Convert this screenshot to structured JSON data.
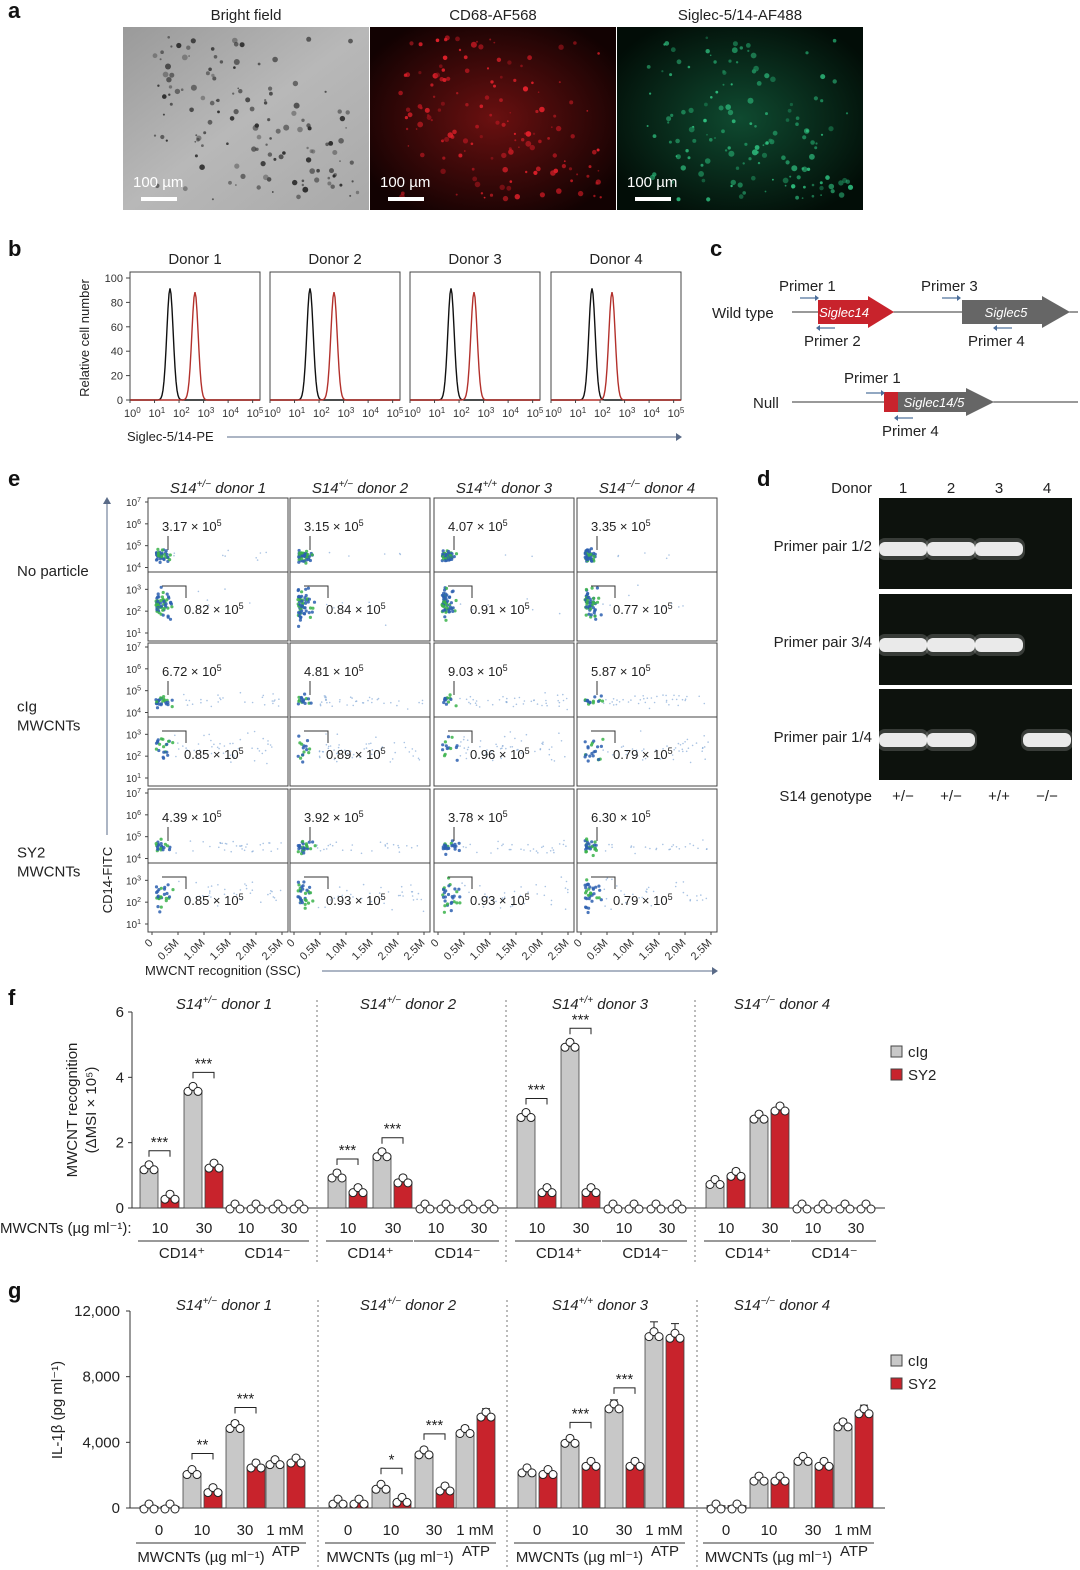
{
  "panel_letters": [
    "a",
    "b",
    "c",
    "d",
    "e",
    "f",
    "g"
  ],
  "panel_a": {
    "images": [
      {
        "title": "Bright field",
        "scale": "100 µm"
      },
      {
        "title": "CD68-AF568",
        "scale": "100 µm"
      },
      {
        "title": "Siglec-5/14-AF488",
        "scale": "100 µm"
      }
    ]
  },
  "panel_b": {
    "donors": [
      "Donor 1",
      "Donor 2",
      "Donor 3",
      "Donor 4"
    ],
    "ylabel": "Relative cell number",
    "xlabel": "Siglec-5/14-PE",
    "yticks": [
      "0",
      "20",
      "40",
      "60",
      "80",
      "100"
    ],
    "xticks_base": "10",
    "xticks_exp": [
      "0",
      "1",
      "2",
      "3",
      "4",
      "5"
    ]
  },
  "panel_c": {
    "wild_type": "Wild type",
    "null": "Null",
    "primers_wt": [
      "Primer 1",
      "Primer 2",
      "Primer 3",
      "Primer 4"
    ],
    "primers_null": [
      "Primer 1",
      "Primer 4"
    ],
    "genes": {
      "s14": "Siglec14",
      "s5": "Siglec5",
      "fused": "Siglec14/5"
    }
  },
  "panel_d": {
    "donor_label": "Donor",
    "lanes": [
      "1",
      "2",
      "3",
      "4"
    ],
    "pairs": [
      "Primer pair 1/2",
      "Primer pair 3/4",
      "Primer pair 1/4"
    ],
    "genotype_label": "S14 genotype",
    "genotypes": [
      "+/−",
      "+/−",
      "+/+",
      "−/−"
    ],
    "bands": [
      [
        1,
        1,
        1,
        0
      ],
      [
        1,
        1,
        1,
        0
      ],
      [
        1,
        1,
        0,
        1
      ]
    ]
  },
  "panel_e": {
    "columns": [
      {
        "g": "S14",
        "sup": "+/−",
        "d": " donor 1"
      },
      {
        "g": "S14",
        "sup": "+/−",
        "d": " donor 2"
      },
      {
        "g": "S14",
        "sup": "+/+",
        "d": " donor 3"
      },
      {
        "g": "S14",
        "sup": "−/−",
        "d": " donor 4"
      }
    ],
    "rows": [
      [
        "No particle"
      ],
      [
        "cIg",
        "MWCNTs"
      ],
      [
        "SY2",
        "MWCNTs"
      ]
    ],
    "upper": [
      [
        "3.17",
        "3.15",
        "4.07",
        "3.35"
      ],
      [
        "6.72",
        "4.81",
        "9.03",
        "5.87"
      ],
      [
        "4.39",
        "3.92",
        "3.78",
        "6.30"
      ]
    ],
    "lower": [
      [
        "0.82",
        "0.84",
        "0.91",
        "0.77"
      ],
      [
        "0.85",
        "0.89",
        "0.96",
        "0.79"
      ],
      [
        "0.85",
        "0.93",
        "0.93",
        "0.79"
      ]
    ],
    "mult": "× 10",
    "exp": "5",
    "ylabel": "CD14-FITC",
    "xlabel": "MWCNT recognition (SSC)",
    "xticks": [
      "0",
      "0.5M",
      "1.0M",
      "1.5M",
      "2.0M",
      "2.5M"
    ],
    "yticks_exp": [
      "1",
      "2",
      "3",
      "4",
      "5",
      "6",
      "7"
    ]
  },
  "panel_f": {
    "titles": [
      {
        "g": "S14",
        "sup": "+/−",
        "d": " donor 1"
      },
      {
        "g": "S14",
        "sup": "+/−",
        "d": " donor 2"
      },
      {
        "g": "S14",
        "sup": "+/+",
        "d": " donor 3"
      },
      {
        "g": "S14",
        "sup": "−/−",
        "d": " donor 4"
      }
    ],
    "ylabel1": "MWCNT recognition",
    "ylabel2": "(ΔMSI × 10⁵)",
    "xprefix": "MWCNTs (µg ml⁻¹):",
    "dose_labels": [
      "10",
      "30",
      "10",
      "30"
    ],
    "groups": [
      "CD14⁺",
      "CD14⁻"
    ],
    "legend": [
      {
        "name": "cIg",
        "color": "#c8c8c8"
      },
      {
        "name": "SY2",
        "color": "#c8232c"
      }
    ],
    "chart_data": {
      "type": "bar",
      "ylim": [
        0,
        6
      ],
      "yticks": [
        "0",
        "2",
        "4",
        "6"
      ],
      "series": [
        {
          "name": "cIg",
          "values": [
            [
              1.2,
              3.6,
              0.0,
              0.0
            ],
            [
              0.95,
              1.6,
              0.0,
              0.0
            ],
            [
              2.8,
              4.95,
              0.0,
              0.0
            ],
            [
              0.75,
              2.75,
              0.0,
              0.0
            ]
          ]
        },
        {
          "name": "SY2",
          "values": [
            [
              0.3,
              1.25,
              0.0,
              0.0
            ],
            [
              0.5,
              0.8,
              0.0,
              0.0
            ],
            [
              0.5,
              0.5,
              0.0,
              0.0
            ],
            [
              1.0,
              3.0,
              0.0,
              0.0
            ]
          ]
        }
      ],
      "significance": [
        [
          "***",
          "***"
        ],
        [
          "***",
          "***"
        ],
        [
          "***",
          "***"
        ],
        [
          "",
          ""
        ]
      ]
    }
  },
  "panel_g": {
    "titles": [
      {
        "g": "S14",
        "sup": "+/−",
        "d": " donor 1"
      },
      {
        "g": "S14",
        "sup": "+/−",
        "d": " donor 2"
      },
      {
        "g": "S14",
        "sup": "+/+",
        "d": " donor 3"
      },
      {
        "g": "S14",
        "sup": "−/−",
        "d": " donor 4"
      }
    ],
    "ylabel": "IL-1β (pg ml⁻¹)",
    "categories": [
      "0",
      "10",
      "30",
      "1 mM"
    ],
    "xlabel": "MWCNTs (µg ml⁻¹)",
    "atp": "ATP",
    "legend": [
      {
        "name": "cIg",
        "color": "#c8c8c8"
      },
      {
        "name": "SY2",
        "color": "#c8232c"
      }
    ],
    "chart_data": {
      "type": "bar",
      "ylim": [
        0,
        12000
      ],
      "yticks": [
        "0",
        "4,000",
        "8,000",
        "12,000"
      ],
      "series": [
        {
          "name": "cIg",
          "values": [
            [
              100,
              2100,
              4900,
              2700
            ],
            [
              300,
              1200,
              3300,
              4600
            ],
            [
              2200,
              4000,
              6100,
              10500
            ],
            [
              150,
              1700,
              2900,
              5000
            ]
          ]
        },
        {
          "name": "SY2",
          "values": [
            [
              100,
              1000,
              2500,
              2800
            ],
            [
              300,
              400,
              1100,
              5600
            ],
            [
              2100,
              2600,
              2600,
              10400
            ],
            [
              150,
              1700,
              2600,
              5800
            ]
          ]
        }
      ],
      "significance": [
        [
          "",
          "**",
          "***"
        ],
        [
          "",
          "*",
          "***"
        ],
        [
          "",
          "***",
          "***"
        ],
        [
          "",
          "",
          ""
        ]
      ]
    }
  }
}
